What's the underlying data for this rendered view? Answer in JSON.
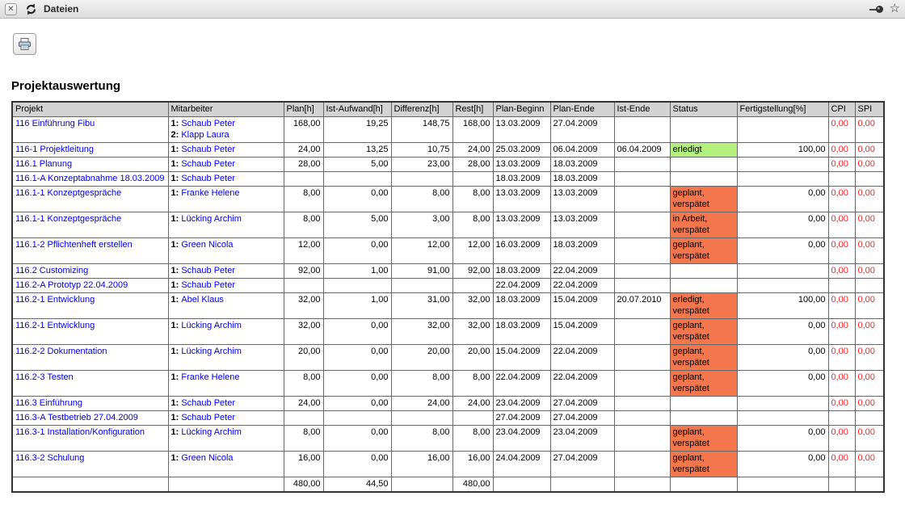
{
  "window": {
    "tab_label": "Dateien",
    "close_glyph": "✕",
    "star_glyph": "☆"
  },
  "page": {
    "title": "Projektauswertung"
  },
  "colors": {
    "status_green": "#b3f07d",
    "status_orange": "#f4764c",
    "cpi_spi_red": "#ff1f1f",
    "link_blue": "#0000ee",
    "header_gray": "#d3d3d3"
  },
  "table": {
    "columns": [
      "Projekt",
      "Mitarbeiter",
      "Plan[h]",
      "Ist-Aufwand[h]",
      "Differenz[h]",
      "Rest[h]",
      "Plan-Beginn",
      "Plan-Ende",
      "Ist-Ende",
      "Status",
      "Fertigstellung[%]",
      "CPI",
      "SPI"
    ],
    "rows": [
      {
        "projekt": "116 Einführung Fibu",
        "mitarbeiter": [
          {
            "n": "1:",
            "name": "Schaub Peter"
          },
          {
            "n": "2:",
            "name": "Klapp Laura"
          }
        ],
        "plan": "168,00",
        "ist": "19,25",
        "diff": "148,75",
        "rest": "168,00",
        "plan_beginn": "13.03.2009",
        "plan_ende": "27.04.2009",
        "ist_ende": "",
        "status": "",
        "status_color": null,
        "fertig": "",
        "cpi": "0,00",
        "spi": "0,00"
      },
      {
        "projekt": "116-1 Projektleitung",
        "mitarbeiter": [
          {
            "n": "1:",
            "name": "Schaub Peter"
          }
        ],
        "plan": "24,00",
        "ist": "13,25",
        "diff": "10,75",
        "rest": "24,00",
        "plan_beginn": "25.03.2009",
        "plan_ende": "06.04.2009",
        "ist_ende": "06.04.2009",
        "status": "erledigt",
        "status_color": "green",
        "fertig": "100,00",
        "cpi": "0,00",
        "spi": "0,00"
      },
      {
        "projekt": "116.1 Planung",
        "mitarbeiter": [
          {
            "n": "1:",
            "name": "Schaub Peter"
          }
        ],
        "plan": "28,00",
        "ist": "5,00",
        "diff": "23,00",
        "rest": "28,00",
        "plan_beginn": "13.03.2009",
        "plan_ende": "18.03.2009",
        "ist_ende": "",
        "status": "",
        "status_color": null,
        "fertig": "",
        "cpi": "0,00",
        "spi": "0,00"
      },
      {
        "projekt": "116.1-A Konzeptabnahme 18.03.2009",
        "mitarbeiter": [
          {
            "n": "1:",
            "name": "Schaub Peter"
          }
        ],
        "plan": "",
        "ist": "",
        "diff": "",
        "rest": "",
        "plan_beginn": "18.03.2009",
        "plan_ende": "18.03.2009",
        "ist_ende": "",
        "status": "",
        "status_color": null,
        "fertig": "",
        "cpi": "",
        "spi": ""
      },
      {
        "projekt": "116.1-1 Konzeptgespräche",
        "mitarbeiter": [
          {
            "n": "1:",
            "name": "Franke Helene"
          }
        ],
        "plan": "8,00",
        "ist": "0,00",
        "diff": "8,00",
        "rest": "8,00",
        "plan_beginn": "13.03.2009",
        "plan_ende": "13.03.2009",
        "ist_ende": "",
        "status": "geplant, verspätet",
        "status_color": "orange",
        "fertig": "0,00",
        "cpi": "0,00",
        "spi": "0,00"
      },
      {
        "projekt": "116.1-1 Konzeptgespräche",
        "mitarbeiter": [
          {
            "n": "1:",
            "name": "Lücking Archim"
          }
        ],
        "plan": "8,00",
        "ist": "5,00",
        "diff": "3,00",
        "rest": "8,00",
        "plan_beginn": "13.03.2009",
        "plan_ende": "13.03.2009",
        "ist_ende": "",
        "status": "in Arbeit, verspätet",
        "status_color": "orange",
        "fertig": "0,00",
        "cpi": "0,00",
        "spi": "0,00"
      },
      {
        "projekt": "116.1-2 Pflichtenheft erstellen",
        "mitarbeiter": [
          {
            "n": "1:",
            "name": "Green Nicola"
          }
        ],
        "plan": "12,00",
        "ist": "0,00",
        "diff": "12,00",
        "rest": "12,00",
        "plan_beginn": "16.03.2009",
        "plan_ende": "18.03.2009",
        "ist_ende": "",
        "status": "geplant, verspätet",
        "status_color": "orange",
        "fertig": "0,00",
        "cpi": "0,00",
        "spi": "0,00"
      },
      {
        "projekt": "116.2 Customizing",
        "mitarbeiter": [
          {
            "n": "1:",
            "name": "Schaub Peter"
          }
        ],
        "plan": "92,00",
        "ist": "1,00",
        "diff": "91,00",
        "rest": "92,00",
        "plan_beginn": "18.03.2009",
        "plan_ende": "22.04.2009",
        "ist_ende": "",
        "status": "",
        "status_color": null,
        "fertig": "",
        "cpi": "0,00",
        "spi": "0,00"
      },
      {
        "projekt": "116.2-A Prototyp 22.04.2009",
        "mitarbeiter": [
          {
            "n": "1:",
            "name": "Schaub Peter"
          }
        ],
        "plan": "",
        "ist": "",
        "diff": "",
        "rest": "",
        "plan_beginn": "22.04.2009",
        "plan_ende": "22.04.2009",
        "ist_ende": "",
        "status": "",
        "status_color": null,
        "fertig": "",
        "cpi": "",
        "spi": ""
      },
      {
        "projekt": "116.2-1 Entwicklung",
        "mitarbeiter": [
          {
            "n": "1:",
            "name": "Abel Klaus"
          }
        ],
        "plan": "32,00",
        "ist": "1,00",
        "diff": "31,00",
        "rest": "32,00",
        "plan_beginn": "18.03.2009",
        "plan_ende": "15.04.2009",
        "ist_ende": "20.07.2010",
        "status": "erledigt, verspätet",
        "status_color": "orange",
        "fertig": "100,00",
        "cpi": "0,00",
        "spi": "0,00"
      },
      {
        "projekt": "116.2-1 Entwicklung",
        "mitarbeiter": [
          {
            "n": "1:",
            "name": "Lücking Archim"
          }
        ],
        "plan": "32,00",
        "ist": "0,00",
        "diff": "32,00",
        "rest": "32,00",
        "plan_beginn": "18.03.2009",
        "plan_ende": "15.04.2009",
        "ist_ende": "",
        "status": "geplant, verspätet",
        "status_color": "orange",
        "fertig": "0,00",
        "cpi": "0,00",
        "spi": "0,00"
      },
      {
        "projekt": "116.2-2 Dokumentation",
        "mitarbeiter": [
          {
            "n": "1:",
            "name": "Lücking Archim"
          }
        ],
        "plan": "20,00",
        "ist": "0,00",
        "diff": "20,00",
        "rest": "20,00",
        "plan_beginn": "15.04.2009",
        "plan_ende": "22.04.2009",
        "ist_ende": "",
        "status": "geplant, verspätet",
        "status_color": "orange",
        "fertig": "0,00",
        "cpi": "0,00",
        "spi": "0,00"
      },
      {
        "projekt": "116.2-3 Testen",
        "mitarbeiter": [
          {
            "n": "1:",
            "name": "Franke Helene"
          }
        ],
        "plan": "8,00",
        "ist": "0,00",
        "diff": "8,00",
        "rest": "8,00",
        "plan_beginn": "22.04.2009",
        "plan_ende": "22.04.2009",
        "ist_ende": "",
        "status": "geplant, verspätet",
        "status_color": "orange",
        "fertig": "0,00",
        "cpi": "0,00",
        "spi": "0,00"
      },
      {
        "projekt": "116.3 Einführung",
        "mitarbeiter": [
          {
            "n": "1:",
            "name": "Schaub Peter"
          }
        ],
        "plan": "24,00",
        "ist": "0,00",
        "diff": "24,00",
        "rest": "24,00",
        "plan_beginn": "23.04.2009",
        "plan_ende": "27.04.2009",
        "ist_ende": "",
        "status": "",
        "status_color": null,
        "fertig": "",
        "cpi": "0,00",
        "spi": "0,00"
      },
      {
        "projekt": "116.3-A Testbetrieb 27.04.2009",
        "mitarbeiter": [
          {
            "n": "1:",
            "name": "Schaub Peter"
          }
        ],
        "plan": "",
        "ist": "",
        "diff": "",
        "rest": "",
        "plan_beginn": "27.04.2009",
        "plan_ende": "27.04.2009",
        "ist_ende": "",
        "status": "",
        "status_color": null,
        "fertig": "",
        "cpi": "",
        "spi": ""
      },
      {
        "projekt": "116.3-1 Installation/Konfiguration",
        "mitarbeiter": [
          {
            "n": "1:",
            "name": "Lücking Archim"
          }
        ],
        "plan": "8,00",
        "ist": "0,00",
        "diff": "8,00",
        "rest": "8,00",
        "plan_beginn": "23.04.2009",
        "plan_ende": "23.04.2009",
        "ist_ende": "",
        "status": "geplant, verspätet",
        "status_color": "orange",
        "fertig": "0,00",
        "cpi": "0,00",
        "spi": "0,00"
      },
      {
        "projekt": "116.3-2 Schulung",
        "mitarbeiter": [
          {
            "n": "1:",
            "name": "Green Nicola"
          }
        ],
        "plan": "16,00",
        "ist": "0,00",
        "diff": "16,00",
        "rest": "16,00",
        "plan_beginn": "24.04.2009",
        "plan_ende": "27.04.2009",
        "ist_ende": "",
        "status": "geplant, verspätet",
        "status_color": "orange",
        "fertig": "0,00",
        "cpi": "0,00",
        "spi": "0,00"
      }
    ],
    "totals": {
      "plan": "480,00",
      "ist": "44,50",
      "diff": "",
      "rest": "480,00"
    }
  }
}
